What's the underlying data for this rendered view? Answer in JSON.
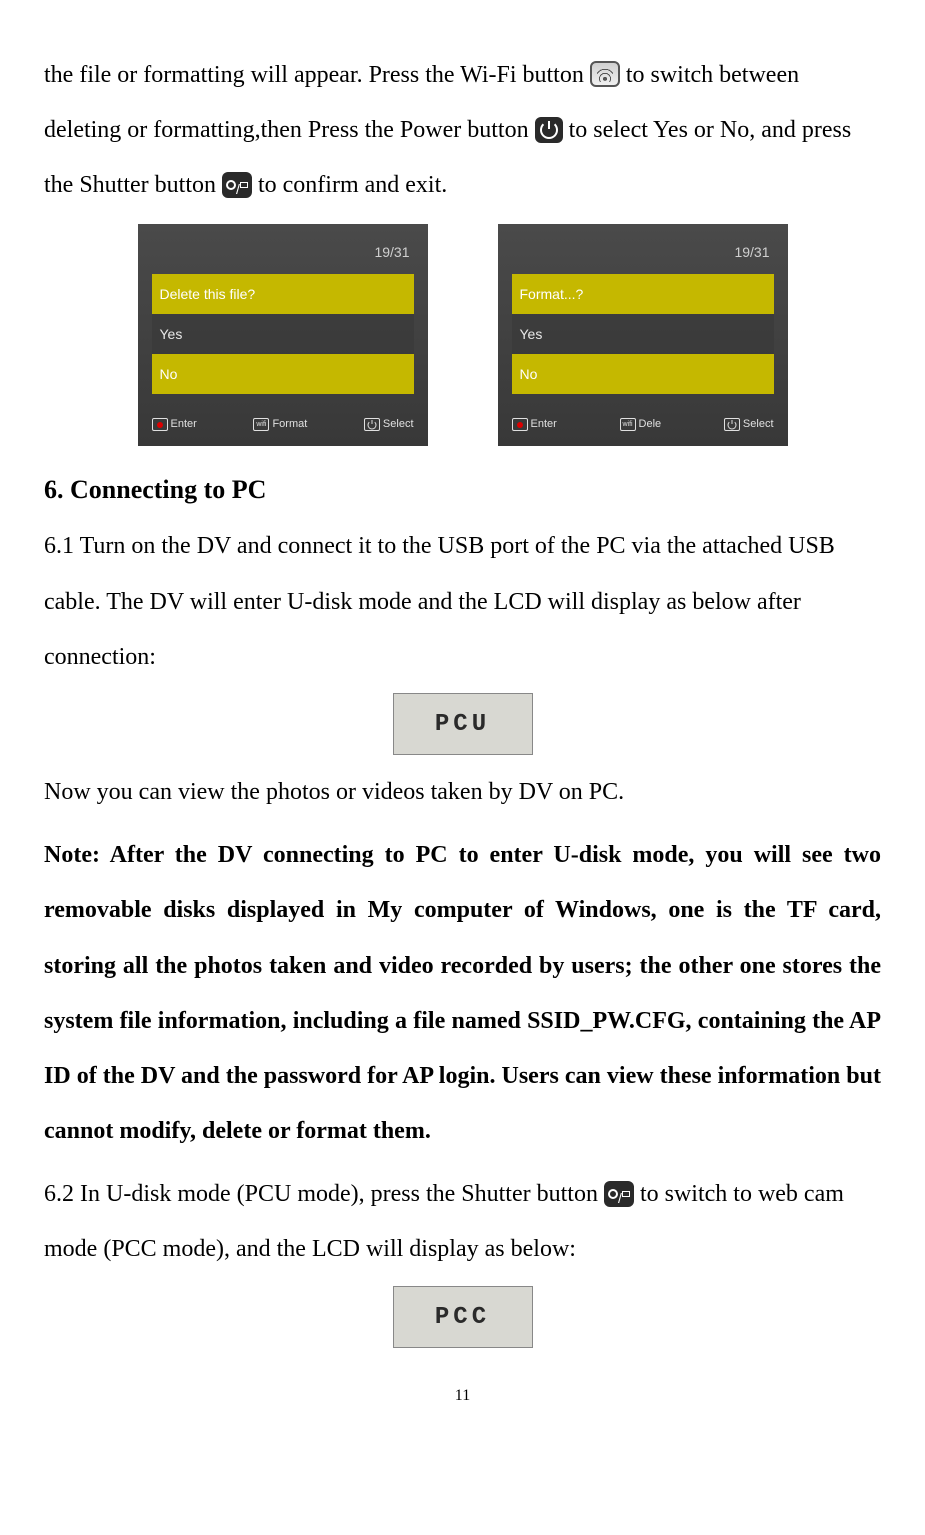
{
  "intro": {
    "seg1": "the file or formatting will appear. Press the Wi-Fi button",
    "seg2": " to switch between deleting or formatting,then Press the Power button",
    "seg3": " to select Yes or No, and press the Shutter button",
    "seg4": " to confirm and exit."
  },
  "shots": {
    "counter": "19/31",
    "left": {
      "title": "Delete this file?",
      "yes": "Yes",
      "no": "No",
      "b1": "Enter",
      "b2": "Format",
      "b3": "Select"
    },
    "right": {
      "title": "Format...?",
      "yes": "Yes",
      "no": "No",
      "b1": "Enter",
      "b2": "Dele",
      "b3": "Select"
    }
  },
  "h6": "6. Connecting to PC",
  "p61": "6.1 Turn on the DV and connect it to the USB port of the PC via the attached USB cable. The DV will enter U-disk mode and the LCD will display as below after connection:",
  "lcd1": "PCU",
  "p_now": "Now you can view the photos or videos taken by DV on PC.",
  "note": "Note: After the DV connecting to PC to enter U-disk mode, you will see two removable disks displayed in My computer of Windows, one is the TF card, storing all the photos taken and video recorded by users; the other one stores the system file information, including a file named SSID_PW.CFG, containing the AP ID of the DV and the password for AP login. Users can view these information but cannot modify, delete or format them.",
  "p62a": "6.2 In U-disk mode (PCU mode), press the Shutter button",
  "p62b": " to switch to web cam mode (PCC mode), and the LCD will display as below:",
  "lcd2": "PCC",
  "page": "11"
}
